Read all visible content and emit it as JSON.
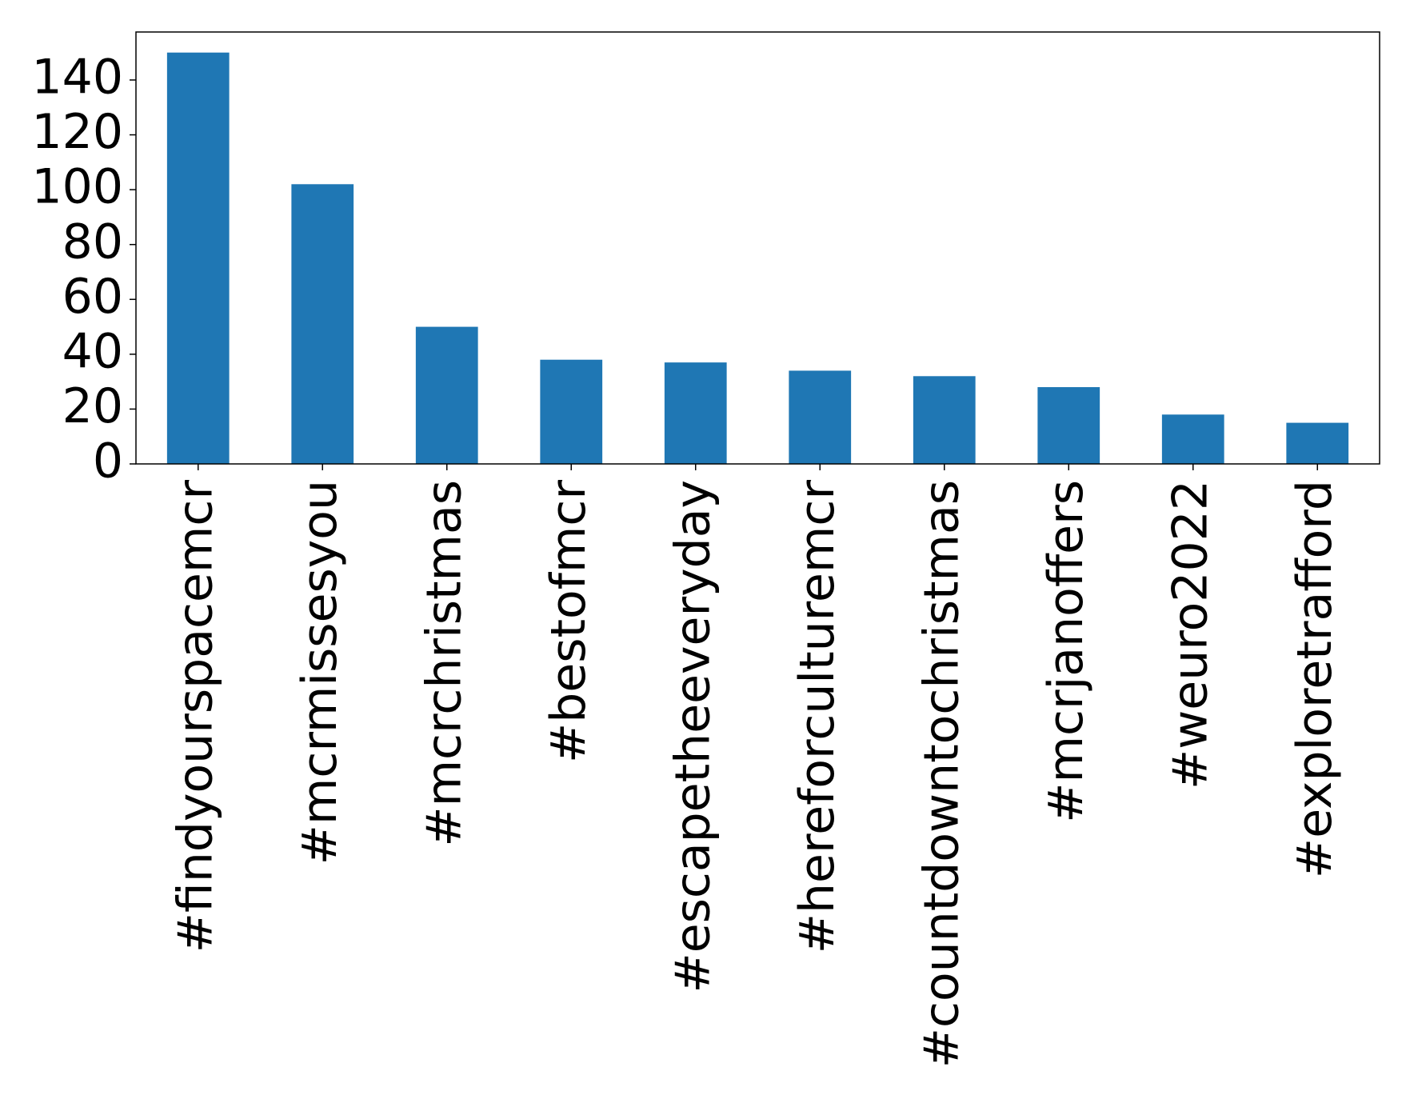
{
  "chart_data": {
    "type": "bar",
    "categories": [
      "#findyourspacemcr",
      "#mcrmissesyou",
      "#mcrchristmas",
      "#bestofmcr",
      "#escapetheeveryday",
      "#hereforculturemcr",
      "#countdowntochristmas",
      "#mcrjanoffers",
      "#weuro2022",
      "#exploretrafford"
    ],
    "values": [
      150,
      102,
      50,
      38,
      37,
      34,
      32,
      28,
      18,
      15
    ],
    "color": "#1f77b4",
    "ylim": [
      0,
      157.5
    ],
    "yticks": [
      0,
      20,
      40,
      60,
      80,
      100,
      120,
      140
    ],
    "grid": false
  }
}
